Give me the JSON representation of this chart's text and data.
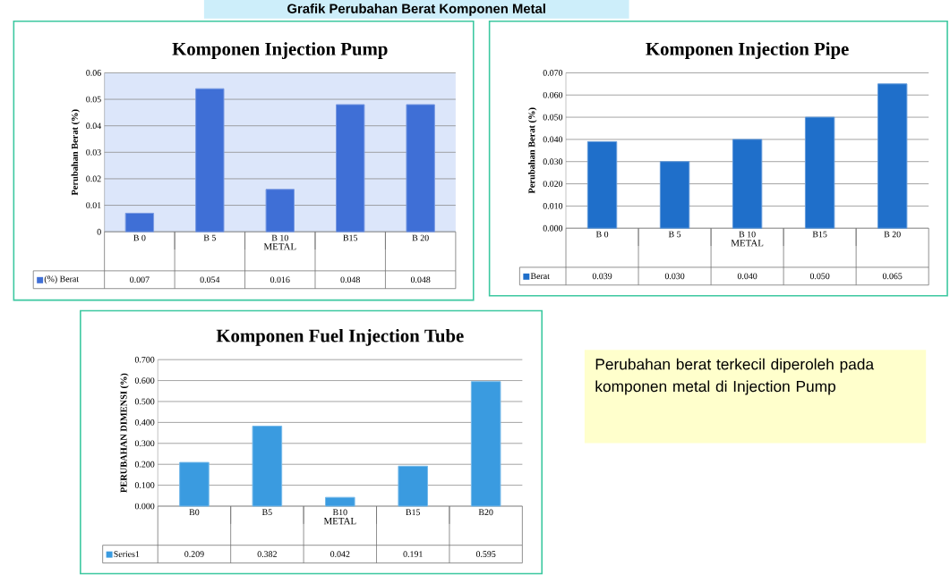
{
  "chart_data": [
    {
      "type": "bar",
      "title": "Komponen Injection Pump",
      "xlabel": "METAL",
      "ylabel": "Perubahan Berat (%)",
      "categories": [
        "B 0",
        "B 5",
        "B 10",
        "B15",
        "B 20"
      ],
      "series": [
        {
          "name": "(%) Berat",
          "color": "#3f6fd6",
          "values": [
            0.007,
            0.054,
            0.016,
            0.048,
            0.048
          ],
          "value_labels": [
            "0.007",
            "0.054",
            "0.016",
            "0.048",
            "0.048"
          ]
        }
      ],
      "ylim": [
        0,
        0.06
      ],
      "yticks": [
        0,
        0.01,
        0.02,
        0.03,
        0.04,
        0.05,
        0.06
      ],
      "grid": "y",
      "legend": "bottom"
    },
    {
      "type": "bar",
      "title": "Komponen Injection Pipe",
      "xlabel": "METAL",
      "ylabel": "Perubahan Berat (%)",
      "categories": [
        "B 0",
        "B 5",
        "B 10",
        "B15",
        "B 20"
      ],
      "series": [
        {
          "name": "Berat",
          "color": "#1f6fca",
          "values": [
            0.039,
            0.03,
            0.04,
            0.05,
            0.065
          ],
          "value_labels": [
            "0.039",
            "0.030",
            "0.040",
            "0.050",
            "0.065"
          ]
        }
      ],
      "ylim": [
        0,
        0.07
      ],
      "yticks": [
        {
          "value": 0,
          "label": "0.000"
        },
        {
          "value": 0.01,
          "label": "0.010"
        },
        {
          "value": 0.02,
          "label": "0.020"
        },
        {
          "value": 0.03,
          "label": "0.030"
        },
        {
          "value": 0.04,
          "label": "0.040"
        },
        {
          "value": 0.05,
          "label": "0.050"
        },
        {
          "value": 0.06,
          "label": "0.060"
        },
        {
          "value": 0.07,
          "label": "0.070"
        }
      ],
      "grid": "y",
      "legend": "bottom"
    },
    {
      "type": "bar",
      "title": "Komponen Fuel Injection Tube",
      "xlabel": "METAL",
      "ylabel": "PERUBAHAN DIMENSI (%)",
      "categories": [
        "B0",
        "B5",
        "B10",
        "B15",
        "B20"
      ],
      "series": [
        {
          "name": "Series1",
          "color": "#3a9be0",
          "values": [
            0.209,
            0.382,
            0.042,
            0.191,
            0.595
          ],
          "value_labels": [
            "0.209",
            "0.382",
            "0.042",
            "0.191",
            "0.595"
          ]
        }
      ],
      "ylim": [
        0,
        0.7
      ],
      "yticks": [
        {
          "value": 0,
          "label": "0.000"
        },
        {
          "value": 0.1,
          "label": "0.100"
        },
        {
          "value": 0.2,
          "label": "0.200"
        },
        {
          "value": 0.3,
          "label": "0.300"
        },
        {
          "value": 0.4,
          "label": "0.400"
        },
        {
          "value": 0.5,
          "label": "0.500"
        },
        {
          "value": 0.6,
          "label": "0.600"
        },
        {
          "value": 0.7,
          "label": "0.700"
        }
      ],
      "grid": "y",
      "legend": "bottom"
    },
    {
      "type": "other",
      "title": "Grafik Perubahan Berat Komponen Metal",
      "annotations": [
        "Perubahan berat terkecil diperoleh pada komponen metal di Injection Pump"
      ]
    }
  ]
}
